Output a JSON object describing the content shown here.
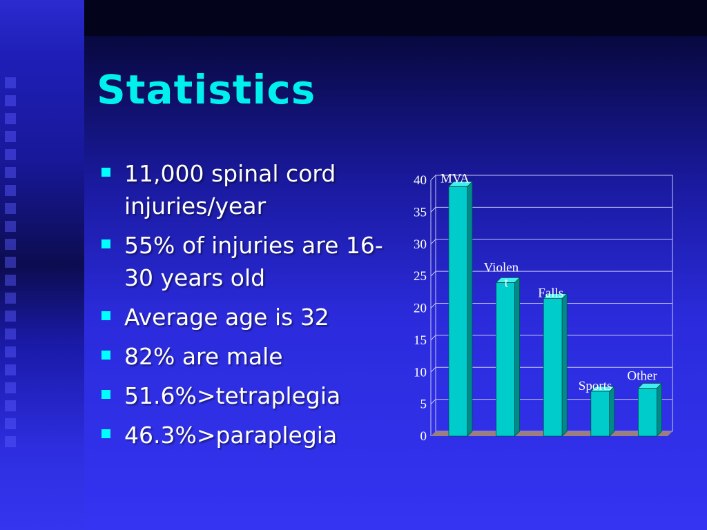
{
  "slide": {
    "title": "Statistics",
    "bullets": [
      "11,000 spinal cord injuries/year",
      "55% of injuries are 16-30 years old",
      "Average age is 32",
      "82% are male",
      "51.6%>tetraplegia",
      "46.3%>paraplegia"
    ]
  },
  "colors": {
    "title": "#00f0ee",
    "bullet_marker": "#00ffff",
    "bar_front": "#00cccc",
    "bar_side": "#008a8a",
    "bar_top": "#44eeee",
    "floor": "#9b7f7f"
  },
  "chart_data": {
    "type": "bar",
    "categories": [
      "MVA",
      "Violent",
      "Falls",
      "Sports",
      "Other"
    ],
    "category_labels_display": [
      [
        "MVA"
      ],
      [
        "Violen",
        "t"
      ],
      [
        "Falls"
      ],
      [
        "Sports"
      ],
      [
        "Other"
      ]
    ],
    "values": [
      39,
      24,
      21.5,
      7,
      7.5
    ],
    "ylim": [
      0,
      40
    ],
    "yticks": [
      0,
      5,
      10,
      15,
      20,
      25,
      30,
      35,
      40
    ],
    "grid": true,
    "title": "",
    "xlabel": "",
    "ylabel": ""
  }
}
